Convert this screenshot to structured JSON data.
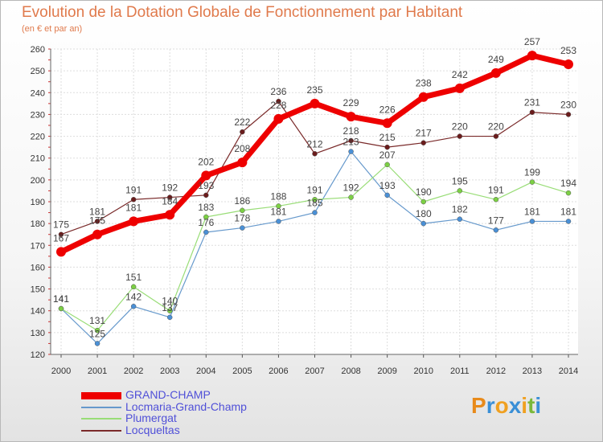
{
  "title": "Evolution de la Dotation Globale de Fonctionnement par Habitant",
  "subtitle": "(en € et par an)",
  "logo": {
    "letters": [
      "P",
      "r",
      "o",
      "x",
      "i",
      "t",
      "i"
    ],
    "colors": [
      "#e88a1a",
      "#3a8fd6",
      "#f0a020",
      "#3a8fd6",
      "#f0a020",
      "#7ab83a",
      "#3a8fd6"
    ]
  },
  "chart_data": {
    "type": "line",
    "title": "Evolution de la Dotation Globale de Fonctionnement par Habitant",
    "ylabel": "(en € et par an)",
    "x": [
      "2000",
      "2001",
      "2002",
      "2003",
      "2004",
      "2005",
      "2006",
      "2007",
      "2008",
      "2009",
      "2010",
      "2011",
      "2012",
      "2013",
      "2014"
    ],
    "ylim": [
      120,
      260
    ],
    "yticks": [
      120,
      130,
      140,
      150,
      160,
      170,
      180,
      190,
      200,
      210,
      220,
      230,
      240,
      250,
      260
    ],
    "grid": true,
    "series": [
      {
        "name": "GRAND-CHAMP",
        "color": "#ee0000",
        "marker": "#ee0000",
        "width": 7,
        "rad": 6,
        "values": [
          167,
          175,
          181,
          184,
          202,
          208,
          228,
          235,
          229,
          226,
          238,
          242,
          249,
          257,
          253
        ]
      },
      {
        "name": "Locmaria-Grand-Champ",
        "color": "#6699cc",
        "marker": "#4a90d6",
        "width": 1.2,
        "rad": 3,
        "values": [
          141,
          125,
          142,
          137,
          176,
          178,
          181,
          185,
          213,
          193,
          180,
          182,
          177,
          181,
          181
        ]
      },
      {
        "name": "Plumergat",
        "color": "#99dd77",
        "marker": "#7cd044",
        "width": 1.2,
        "rad": 3,
        "values": [
          141,
          131,
          151,
          140,
          183,
          186,
          188,
          191,
          192,
          207,
          190,
          195,
          191,
          199,
          194
        ]
      },
      {
        "name": "Locqueltas",
        "color": "#7a2a2a",
        "marker": "#6b1c1c",
        "width": 1.2,
        "rad": 3,
        "values": [
          175,
          181,
          191,
          192,
          193,
          222,
          236,
          212,
          218,
          215,
          217,
          220,
          220,
          231,
          230
        ]
      }
    ]
  }
}
